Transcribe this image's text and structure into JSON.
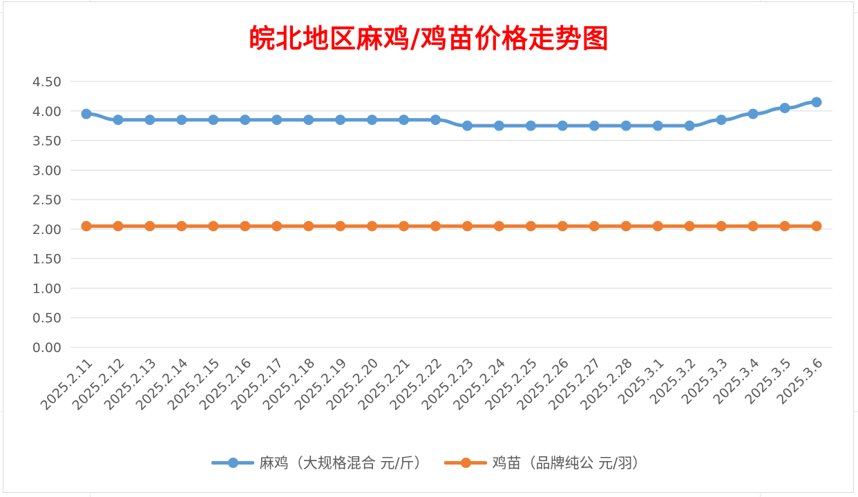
{
  "chart_data": {
    "type": "line",
    "title": "皖北地区麻鸡/鸡苗价格走势图",
    "xlabel": "",
    "ylabel": "",
    "ylim": [
      0,
      4.5
    ],
    "yticks": [
      "0.00",
      "0.50",
      "1.00",
      "1.50",
      "2.00",
      "2.50",
      "3.00",
      "3.50",
      "4.00",
      "4.50"
    ],
    "ytick_values": [
      0,
      0.5,
      1.0,
      1.5,
      2.0,
      2.5,
      3.0,
      3.5,
      4.0,
      4.5
    ],
    "grid": true,
    "legend_position": "bottom",
    "categories": [
      "2025.2.11",
      "2025.2.12",
      "2025.2.13",
      "2025.2.14",
      "2025.2.15",
      "2025.2.16",
      "2025.2.17",
      "2025.2.18",
      "2025.2.19",
      "2025.2.20",
      "2025.2.21",
      "2025.2.22",
      "2025.2.23",
      "2025.2.24",
      "2025.2.25",
      "2025.2.26",
      "2025.2.27",
      "2025.2.28",
      "2025.3.1",
      "2025.3.2",
      "2025.3.3",
      "2025.3.4",
      "2025.3.5",
      "2025.3.6"
    ],
    "series": [
      {
        "name": "麻鸡（大规格混合 元/斤）",
        "color": "#5b9bd5",
        "values": [
          3.95,
          3.85,
          3.85,
          3.85,
          3.85,
          3.85,
          3.85,
          3.85,
          3.85,
          3.85,
          3.85,
          3.85,
          3.75,
          3.75,
          3.75,
          3.75,
          3.75,
          3.75,
          3.75,
          3.75,
          3.85,
          3.95,
          4.05,
          4.15
        ]
      },
      {
        "name": "鸡苗（品牌纯公 元/羽）",
        "color": "#ed7d31",
        "values": [
          2.05,
          2.05,
          2.05,
          2.05,
          2.05,
          2.05,
          2.05,
          2.05,
          2.05,
          2.05,
          2.05,
          2.05,
          2.05,
          2.05,
          2.05,
          2.05,
          2.05,
          2.05,
          2.05,
          2.05,
          2.05,
          2.05,
          2.05,
          2.05
        ]
      }
    ],
    "colors": {
      "title": "#ff0000",
      "gridline": "#d9d9d9",
      "tick_text": "#595959"
    }
  }
}
